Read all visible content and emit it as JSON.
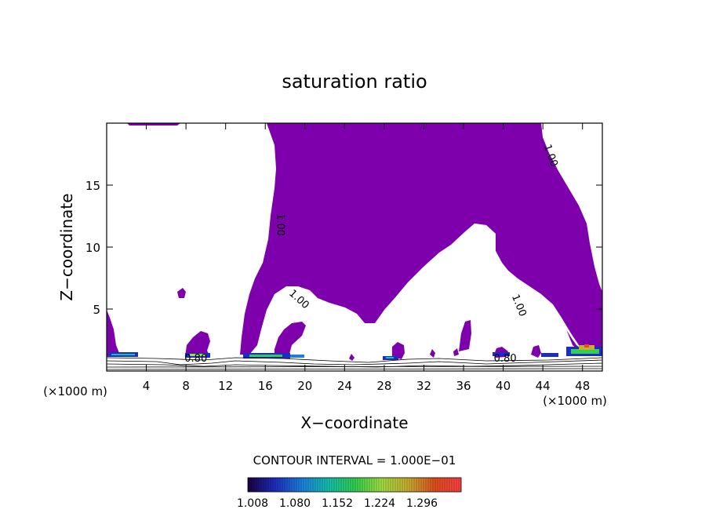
{
  "chart_data": {
    "type": "contour",
    "title": "saturation ratio",
    "xlabel": "X−coordinate",
    "ylabel": "Z−coordinate",
    "x_unit_left": "(×1000 m)",
    "x_unit_right": "(×1000 m)",
    "x_range": [
      0,
      50
    ],
    "y_range": [
      0,
      20
    ],
    "x_ticks": [
      "4",
      "8",
      "12",
      "16",
      "20",
      "24",
      "28",
      "32",
      "36",
      "40",
      "44",
      "48"
    ],
    "x_tick_values": [
      4,
      8,
      12,
      16,
      20,
      24,
      28,
      32,
      36,
      40,
      44,
      48
    ],
    "y_ticks": [
      "5",
      "10",
      "15"
    ],
    "y_tick_values": [
      5,
      10,
      15
    ],
    "contour_labels": [
      {
        "text": "1.00",
        "x": 17.2,
        "z": 11.8,
        "rot": 90
      },
      {
        "text": "1.00",
        "x": 44.5,
        "z": 17.3,
        "rot": 70
      },
      {
        "text": "1.00",
        "x": 19.2,
        "z": 5.6,
        "rot": 42
      },
      {
        "text": "1.00",
        "x": 41.3,
        "z": 5.2,
        "rot": 68
      },
      {
        "text": "0.80",
        "x": 9.0,
        "z": 0.75,
        "rot": 0
      },
      {
        "text": "0.80",
        "x": 40.2,
        "z": 0.75,
        "rot": 0
      }
    ],
    "fill_color": "#7e00ad",
    "contour_interval_text": "CONTOUR INTERVAL = 1.000E−01",
    "colorbar": {
      "labels": [
        "1.008",
        "1.080",
        "1.152",
        "1.224",
        "1.296"
      ],
      "stops": [
        "#1a0040",
        "#1d2dbf",
        "#1c7fe0",
        "#14c0b0",
        "#30d050",
        "#a0e040",
        "#c8b030",
        "#e05020",
        "#ff4040"
      ]
    }
  }
}
